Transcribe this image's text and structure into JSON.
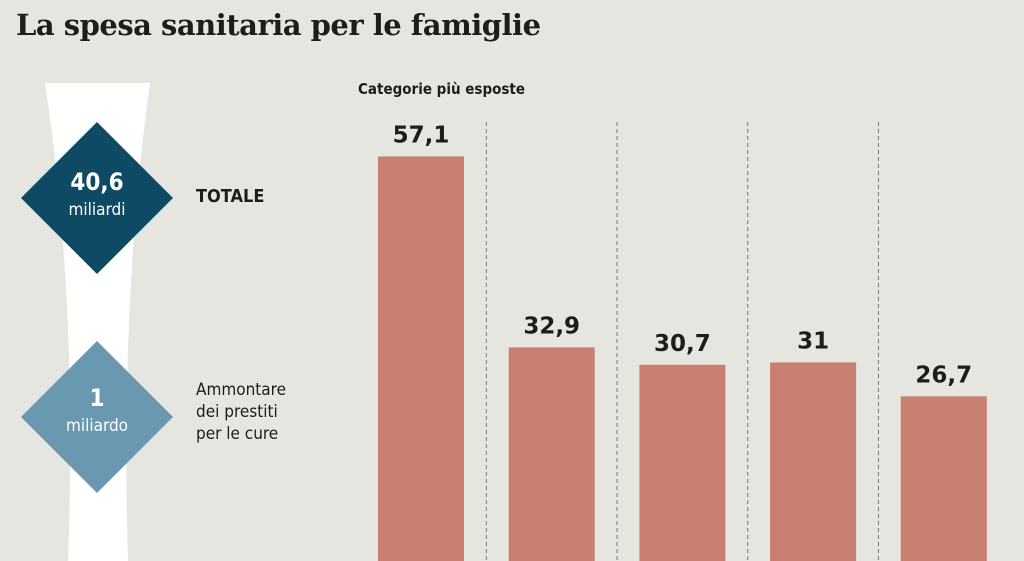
{
  "title": "La spesa sanitaria per le famiglie",
  "left_panel": {
    "total": {
      "value": "40,6",
      "unit": "miliardi",
      "label": "TOTALE",
      "color": "#0e4a63"
    },
    "loans": {
      "value": "1",
      "unit": "miliardo",
      "label_lines": [
        "Ammontare",
        "dei prestiti",
        "per le cure"
      ],
      "color": "#6a98b0"
    }
  },
  "chart_data": {
    "type": "bar",
    "title": "Categorie più esposte",
    "values": [
      57.1,
      32.9,
      30.7,
      31,
      26.7
    ],
    "labels": [
      "57,1",
      "32,9",
      "30,7",
      "31",
      "26,7"
    ],
    "bar_color": "#c87f70",
    "grid": false
  }
}
